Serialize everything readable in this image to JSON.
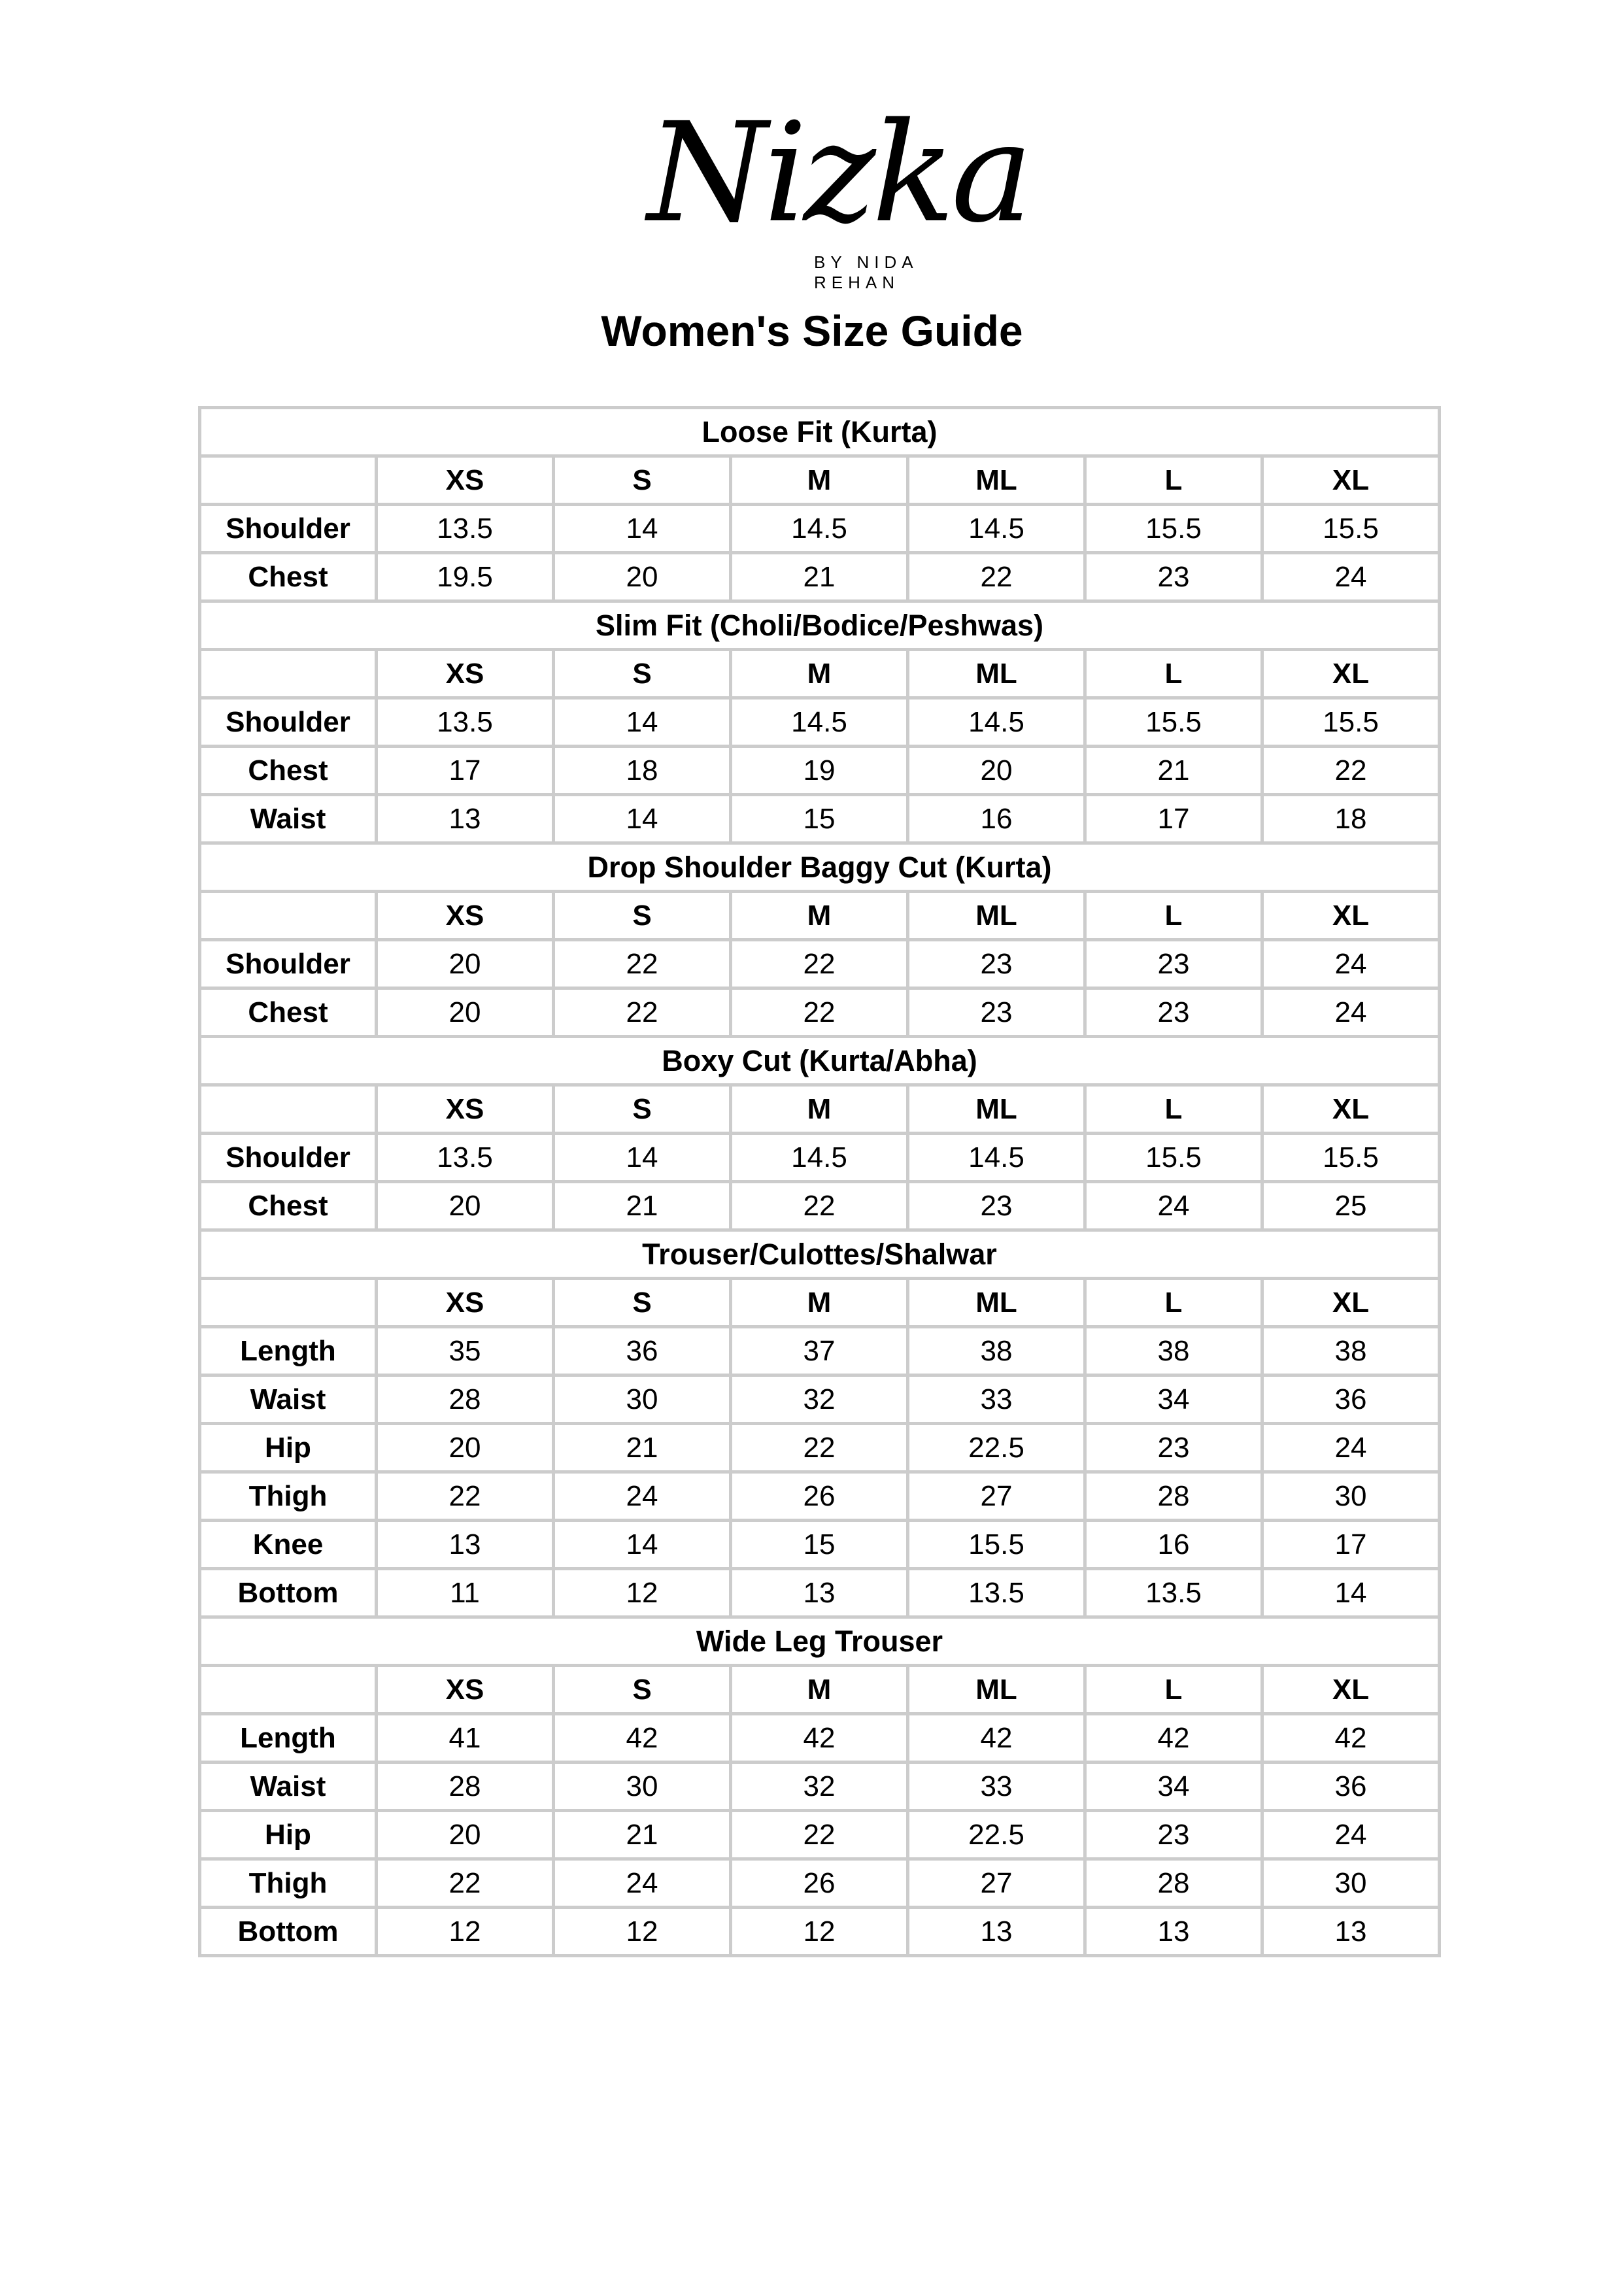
{
  "logo": {
    "brand": "Nizka",
    "tagline": "BY NIDA REHAN"
  },
  "title": "Women's Size Guide",
  "sizes": [
    "XS",
    "S",
    "M",
    "ML",
    "L",
    "XL"
  ],
  "sections": [
    {
      "name": "Loose Fit (Kurta)",
      "rows": [
        {
          "label": "Shoulder",
          "values": [
            "13.5",
            "14",
            "14.5",
            "14.5",
            "15.5",
            "15.5"
          ]
        },
        {
          "label": "Chest",
          "values": [
            "19.5",
            "20",
            "21",
            "22",
            "23",
            "24"
          ]
        }
      ]
    },
    {
      "name": "Slim Fit (Choli/Bodice/Peshwas)",
      "rows": [
        {
          "label": "Shoulder",
          "values": [
            "13.5",
            "14",
            "14.5",
            "14.5",
            "15.5",
            "15.5"
          ]
        },
        {
          "label": "Chest",
          "values": [
            "17",
            "18",
            "19",
            "20",
            "21",
            "22"
          ]
        },
        {
          "label": "Waist",
          "values": [
            "13",
            "14",
            "15",
            "16",
            "17",
            "18"
          ]
        }
      ]
    },
    {
      "name": "Drop Shoulder Baggy Cut (Kurta)",
      "rows": [
        {
          "label": "Shoulder",
          "values": [
            "20",
            "22",
            "22",
            "23",
            "23",
            "24"
          ]
        },
        {
          "label": "Chest",
          "values": [
            "20",
            "22",
            "22",
            "23",
            "23",
            "24"
          ]
        }
      ]
    },
    {
      "name": "Boxy Cut (Kurta/Abha)",
      "rows": [
        {
          "label": "Shoulder",
          "values": [
            "13.5",
            "14",
            "14.5",
            "14.5",
            "15.5",
            "15.5"
          ]
        },
        {
          "label": "Chest",
          "values": [
            "20",
            "21",
            "22",
            "23",
            "24",
            "25"
          ]
        }
      ]
    },
    {
      "name": "Trouser/Culottes/Shalwar",
      "rows": [
        {
          "label": "Length",
          "values": [
            "35",
            "36",
            "37",
            "38",
            "38",
            "38"
          ]
        },
        {
          "label": "Waist",
          "values": [
            "28",
            "30",
            "32",
            "33",
            "34",
            "36"
          ]
        },
        {
          "label": "Hip",
          "values": [
            "20",
            "21",
            "22",
            "22.5",
            "23",
            "24"
          ]
        },
        {
          "label": "Thigh",
          "values": [
            "22",
            "24",
            "26",
            "27",
            "28",
            "30"
          ]
        },
        {
          "label": "Knee",
          "values": [
            "13",
            "14",
            "15",
            "15.5",
            "16",
            "17"
          ]
        },
        {
          "label": "Bottom",
          "values": [
            "11",
            "12",
            "13",
            "13.5",
            "13.5",
            "14"
          ]
        }
      ]
    },
    {
      "name": "Wide Leg Trouser",
      "rows": [
        {
          "label": "Length",
          "values": [
            "41",
            "42",
            "42",
            "42",
            "42",
            "42"
          ]
        },
        {
          "label": "Waist",
          "values": [
            "28",
            "30",
            "32",
            "33",
            "34",
            "36"
          ]
        },
        {
          "label": "Hip",
          "values": [
            "20",
            "21",
            "22",
            "22.5",
            "23",
            "24"
          ]
        },
        {
          "label": "Thigh",
          "values": [
            "22",
            "24",
            "26",
            "27",
            "28",
            "30"
          ]
        },
        {
          "label": "Bottom",
          "values": [
            "12",
            "12",
            "12",
            "13",
            "13",
            "13"
          ]
        }
      ]
    }
  ]
}
